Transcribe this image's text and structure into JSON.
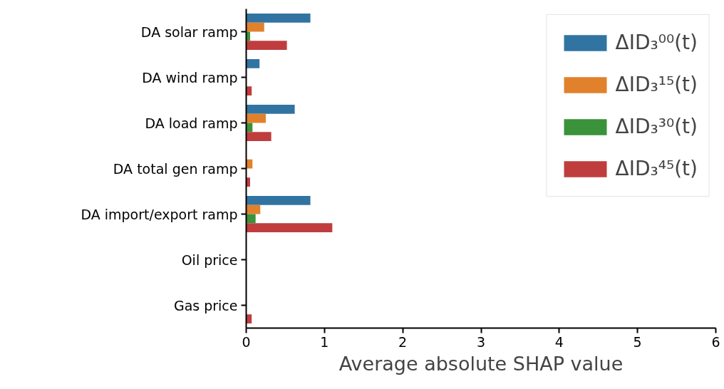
{
  "chart_data": {
    "type": "bar",
    "orientation": "horizontal",
    "xlabel": "Average absolute SHAP value",
    "categories": [
      "DA solar ramp",
      "DA wind ramp",
      "DA load ramp",
      "DA total gen ramp",
      "DA import/export ramp",
      "Oil price",
      "Gas price"
    ],
    "series": [
      {
        "name": "ΔID₃⁰⁰(t)",
        "color": "#3274a1",
        "values": [
          0.82,
          0.17,
          0.62,
          0,
          0.82,
          0,
          0
        ]
      },
      {
        "name": "ΔID₃¹⁵(t)",
        "color": "#e1812c",
        "values": [
          0.23,
          0,
          0.25,
          0.08,
          0.18,
          0,
          0
        ]
      },
      {
        "name": "ΔID₃³⁰(t)",
        "color": "#3a923a",
        "values": [
          0.05,
          0,
          0.08,
          0,
          0.12,
          0,
          0
        ]
      },
      {
        "name": "ΔID₃⁴⁵(t)",
        "color": "#c03d3e",
        "values": [
          0.52,
          0.07,
          0.32,
          0.05,
          1.1,
          0,
          0.07
        ]
      }
    ],
    "xlim": [
      0,
      6
    ],
    "xticks": [
      0,
      1,
      2,
      3,
      4,
      5,
      6
    ],
    "grid": false,
    "legend": "top right"
  }
}
